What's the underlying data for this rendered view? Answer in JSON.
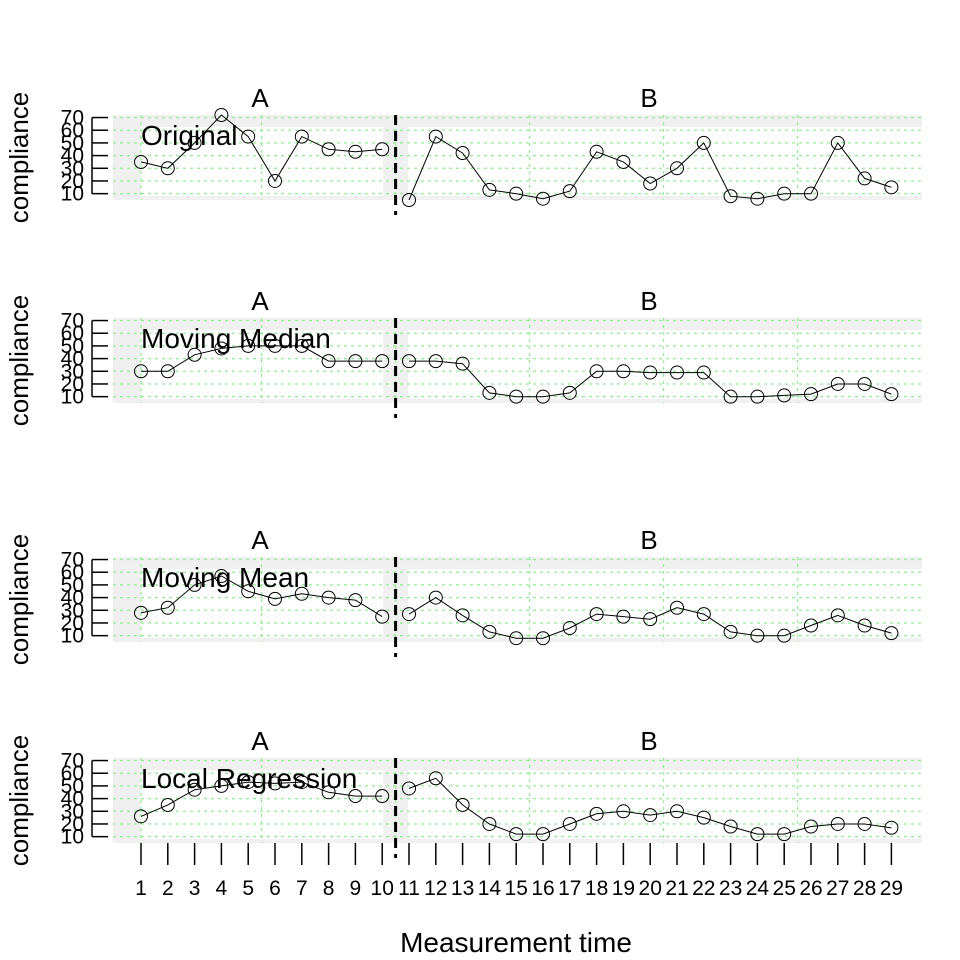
{
  "chart_data": {
    "type": "line",
    "xlabel": "Measurement time",
    "ylabel": "compliance",
    "x": [
      1,
      2,
      3,
      4,
      5,
      6,
      7,
      8,
      9,
      10,
      11,
      12,
      13,
      14,
      15,
      16,
      17,
      18,
      19,
      20,
      21,
      22,
      23,
      24,
      25,
      26,
      27,
      28,
      29
    ],
    "x_tick_labels": [
      "1",
      "2",
      "3",
      "4",
      "5",
      "6",
      "7",
      "8",
      "9",
      "10",
      "11",
      "12",
      "13",
      "14",
      "15",
      "16",
      "17",
      "18",
      "19",
      "20",
      "21",
      "22",
      "23",
      "24",
      "25",
      "26",
      "27",
      "28",
      "29"
    ],
    "y_ticks": [
      10,
      20,
      30,
      40,
      50,
      60,
      70
    ],
    "ylim": [
      5,
      72
    ],
    "phases": [
      {
        "label": "A",
        "start": 1,
        "end": 10
      },
      {
        "label": "B",
        "start": 11,
        "end": 29
      }
    ],
    "phase_change_after": 10,
    "grid": true,
    "grid_color": "#90ee90",
    "background_color": "#f0f0f0",
    "line_color": "#000000",
    "marker": "open-circle",
    "panels": [
      {
        "label": "Original",
        "values": [
          35,
          30,
          50,
          75,
          55,
          20,
          55,
          45,
          43,
          45,
          5,
          55,
          42,
          13,
          10,
          6,
          12,
          43,
          35,
          18,
          30,
          50,
          8,
          6,
          10,
          10,
          50,
          22,
          15
        ]
      },
      {
        "label": "Moving Median",
        "values": [
          30,
          30,
          43,
          48,
          50,
          50,
          50,
          38,
          38,
          38,
          38,
          38,
          36,
          13,
          10,
          10,
          13,
          30,
          30,
          29,
          29,
          29,
          10,
          10,
          11,
          12,
          20,
          20,
          12
        ]
      },
      {
        "label": "Moving Mean",
        "values": [
          28,
          32,
          50,
          57,
          45,
          39,
          43,
          40,
          38,
          25,
          27,
          40,
          26,
          13,
          8,
          8,
          16,
          27,
          25,
          23,
          32,
          27,
          13,
          10,
          10,
          18,
          26,
          18,
          12
        ]
      },
      {
        "label": "Local Regression",
        "values": [
          26,
          35,
          47,
          50,
          53,
          52,
          53,
          45,
          42,
          42,
          48,
          56,
          35,
          20,
          12,
          12,
          20,
          28,
          30,
          27,
          30,
          25,
          18,
          12,
          12,
          18,
          20,
          20,
          17
        ]
      }
    ]
  }
}
